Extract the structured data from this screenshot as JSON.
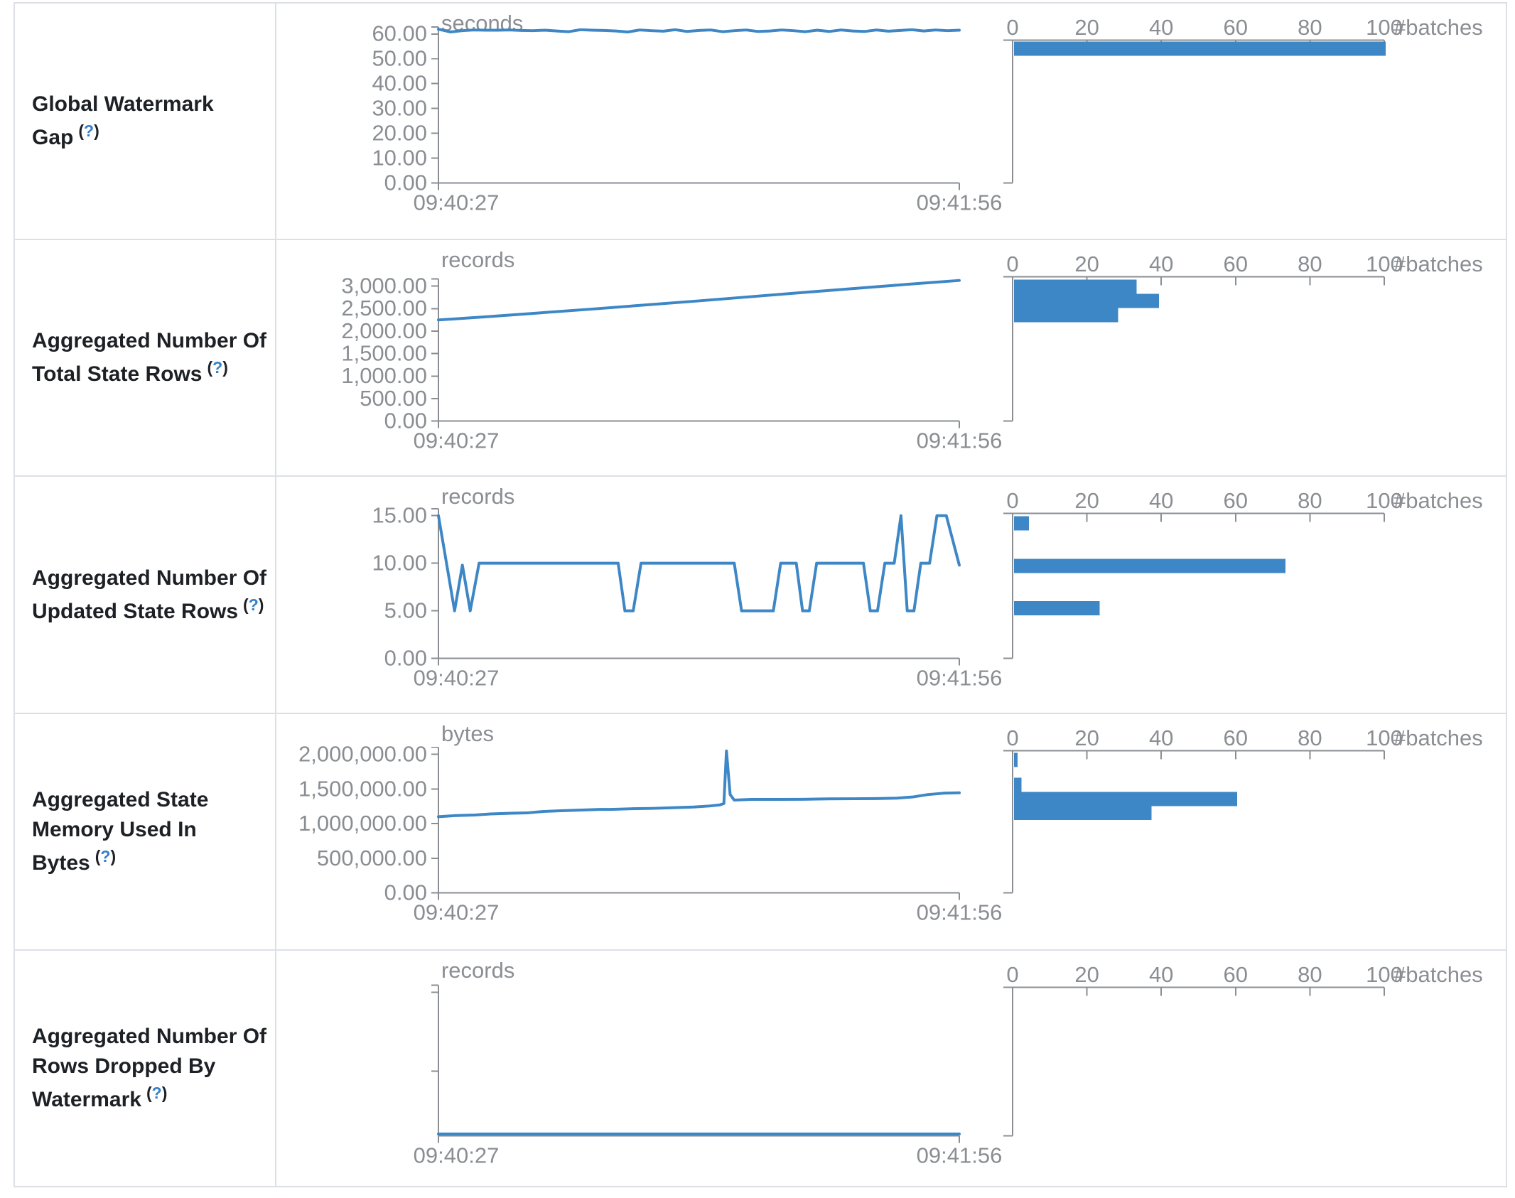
{
  "colors": {
    "accent": "#3d87c6",
    "axis": "#8a8e93",
    "border": "#dce0e6",
    "help": "#3580c8"
  },
  "help": {
    "open": "(",
    "q": "?",
    "close": ")"
  },
  "time_axis": {
    "start": "09:40:27",
    "end": "09:41:56"
  },
  "histogram_axis": {
    "ticks": [
      "0",
      "20",
      "40",
      "60",
      "80",
      "100"
    ],
    "label": "#batches",
    "max": 100
  },
  "rows": [
    {
      "label": "Global Watermark Gap",
      "unit": "seconds",
      "yticks": [
        "0.00",
        "10.00",
        "20.00",
        "30.00",
        "40.00",
        "50.00",
        "60.00"
      ],
      "ymax": 60,
      "line_values": [
        61.9,
        60.8,
        61.3,
        61.6,
        61.5,
        61.5,
        61.6,
        61.4,
        61.3,
        61.5,
        61.2,
        60.9,
        61.7,
        61.5,
        61.4,
        61.2,
        60.8,
        61.6,
        61.3,
        61.1,
        61.7,
        61.0,
        61.4,
        61.6,
        60.9,
        61.3,
        61.6,
        61.0,
        61.2,
        61.6,
        61.3,
        60.9,
        61.5,
        61.0,
        61.6,
        61.2,
        61.0,
        61.6,
        61.1,
        61.4,
        61.7,
        61.2,
        61.6,
        61.3,
        61.5
      ],
      "histogram": [
        {
          "count": 100,
          "y": 54
        }
      ]
    },
    {
      "label": "Aggregated Number Of Total State Rows",
      "unit": "records",
      "yticks": [
        "0.00",
        "500.00",
        "1,000.00",
        "1,500.00",
        "2,000.00",
        "2,500.00",
        "3,000.00"
      ],
      "ymax": 3000,
      "line_points": [
        [
          0,
          2248
        ],
        [
          0.1,
          2325
        ],
        [
          0.3,
          2495
        ],
        [
          0.5,
          2672
        ],
        [
          0.7,
          2858
        ],
        [
          0.9,
          3040
        ],
        [
          1,
          3125
        ]
      ],
      "histogram": [
        {
          "count": 33,
          "y": 56
        },
        {
          "count": 39,
          "y": 76
        },
        {
          "count": 28,
          "y": 96
        }
      ]
    },
    {
      "label": "Aggregated Number Of Updated State Rows",
      "unit": "records",
      "yticks": [
        "0.00",
        "5.00",
        "10.00",
        "15.00"
      ],
      "ymax": 15,
      "line_points": [
        [
          0,
          15
        ],
        [
          0.031,
          5
        ],
        [
          0.046,
          9.8
        ],
        [
          0.061,
          5
        ],
        [
          0.078,
          10
        ],
        [
          0.345,
          10
        ],
        [
          0.358,
          5
        ],
        [
          0.374,
          5
        ],
        [
          0.389,
          10
        ],
        [
          0.568,
          10
        ],
        [
          0.582,
          5
        ],
        [
          0.643,
          5
        ],
        [
          0.657,
          10
        ],
        [
          0.687,
          10
        ],
        [
          0.699,
          5
        ],
        [
          0.712,
          5
        ],
        [
          0.726,
          10
        ],
        [
          0.816,
          10
        ],
        [
          0.829,
          5
        ],
        [
          0.843,
          5
        ],
        [
          0.857,
          10
        ],
        [
          0.875,
          10
        ],
        [
          0.888,
          15
        ],
        [
          0.9,
          5
        ],
        [
          0.913,
          5
        ],
        [
          0.926,
          10
        ],
        [
          0.943,
          10
        ],
        [
          0.957,
          15
        ],
        [
          0.975,
          15
        ],
        [
          1,
          9.8
        ]
      ],
      "histogram": [
        {
          "count": 4,
          "y": 56
        },
        {
          "count": 73,
          "y": 116
        },
        {
          "count": 23,
          "y": 176
        }
      ]
    },
    {
      "label": "Aggregated State Memory Used In Bytes",
      "unit": "bytes",
      "yticks": [
        "0.00",
        "500,000.00",
        "1,000,000.00",
        "1,500,000.00",
        "2,000,000.00"
      ],
      "ymax": 2000000,
      "line_points": [
        [
          0,
          1100000
        ],
        [
          0.03,
          1115000
        ],
        [
          0.07,
          1125000
        ],
        [
          0.1,
          1140000
        ],
        [
          0.14,
          1150000
        ],
        [
          0.17,
          1155000
        ],
        [
          0.2,
          1175000
        ],
        [
          0.23,
          1185000
        ],
        [
          0.27,
          1195000
        ],
        [
          0.31,
          1205000
        ],
        [
          0.33,
          1205000
        ],
        [
          0.37,
          1215000
        ],
        [
          0.41,
          1220000
        ],
        [
          0.45,
          1230000
        ],
        [
          0.49,
          1240000
        ],
        [
          0.52,
          1255000
        ],
        [
          0.54,
          1270000
        ],
        [
          0.548,
          1290000
        ],
        [
          0.553,
          2050000
        ],
        [
          0.56,
          1420000
        ],
        [
          0.568,
          1340000
        ],
        [
          0.6,
          1350000
        ],
        [
          0.65,
          1350000
        ],
        [
          0.7,
          1352000
        ],
        [
          0.75,
          1358000
        ],
        [
          0.8,
          1360000
        ],
        [
          0.84,
          1362000
        ],
        [
          0.88,
          1368000
        ],
        [
          0.91,
          1385000
        ],
        [
          0.94,
          1420000
        ],
        [
          0.97,
          1440000
        ],
        [
          1,
          1445000
        ]
      ],
      "histogram": [
        {
          "count": 1,
          "y": 55
        },
        {
          "count": 2,
          "y": 90
        },
        {
          "count": 60,
          "y": 110
        },
        {
          "count": 37,
          "y": 130
        }
      ]
    },
    {
      "label": "Aggregated Number Of Rows Dropped By Watermark",
      "unit": "records",
      "yticks": [],
      "ymax": 15,
      "line_points": [
        [
          0,
          0.2
        ],
        [
          1,
          0.2
        ]
      ],
      "histogram": []
    }
  ]
}
